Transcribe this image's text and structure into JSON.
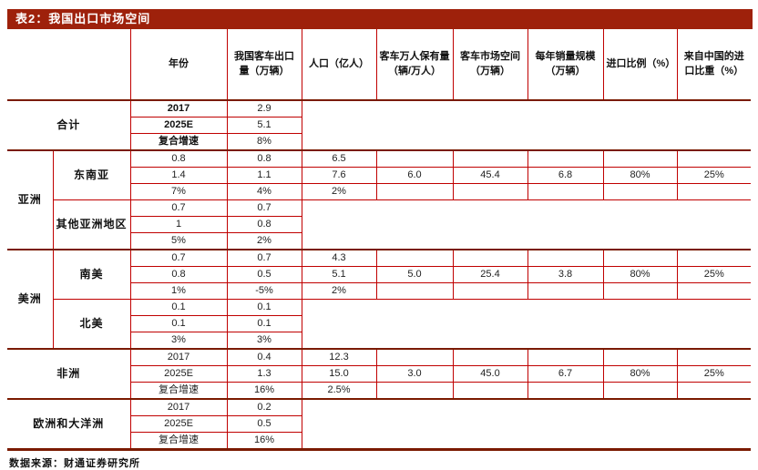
{
  "title": "表2：我国出口市场空间",
  "source": "数据来源：财通证券研究所",
  "colors": {
    "title_bar_background": "#9E210B",
    "cell_border_red": "#C00000",
    "section_separator": "#7A1A00",
    "title_text": "#FFFFFF",
    "body_text": "#222222"
  },
  "table": {
    "headers": [
      "年份",
      "我国客车出口量（万辆）",
      "人口（亿人）",
      "客车万人保有量（辆/万人）",
      "客车市场空间（万辆）",
      "每年销量规模（万辆）",
      "进口比例（%）",
      "来自中国的进口比重（%）"
    ],
    "rows": [
      [
        "合计",
        "2017",
        "2.9"
      ],
      [
        "2025E",
        "5.1"
      ],
      [
        "复合增速",
        "8%"
      ],
      [
        "亚洲",
        "东南亚",
        "0.8",
        "0.8",
        "6.5"
      ],
      [
        "1.4",
        "1.1",
        "7.6",
        "6.0",
        "45.4",
        "6.8",
        "80%",
        "25%"
      ],
      [
        "7%",
        "4%",
        "2%"
      ],
      [
        "其他亚洲地区",
        "0.7",
        "0.7"
      ],
      [
        "1",
        "0.8"
      ],
      [
        "5%",
        "2%"
      ],
      [
        "美洲",
        "南美",
        "0.7",
        "0.7",
        "4.3"
      ],
      [
        "0.8",
        "0.5",
        "5.1",
        "5.0",
        "25.4",
        "3.8",
        "80%",
        "25%"
      ],
      [
        "1%",
        "-5%",
        "2%"
      ],
      [
        "北美",
        "0.1",
        "0.1"
      ],
      [
        "0.1",
        "0.1"
      ],
      [
        "3%",
        "3%"
      ],
      [
        "非洲",
        "2017",
        "0.4",
        "12.3"
      ],
      [
        "2025E",
        "1.3",
        "15.0",
        "3.0",
        "45.0",
        "6.7",
        "80%",
        "25%"
      ],
      [
        "复合增速",
        "16%",
        "2.5%"
      ],
      [
        "欧洲和大洋洲",
        "2017",
        "0.2"
      ],
      [
        "2025E",
        "0.5"
      ],
      [
        "复合增速",
        "16%"
      ]
    ]
  }
}
